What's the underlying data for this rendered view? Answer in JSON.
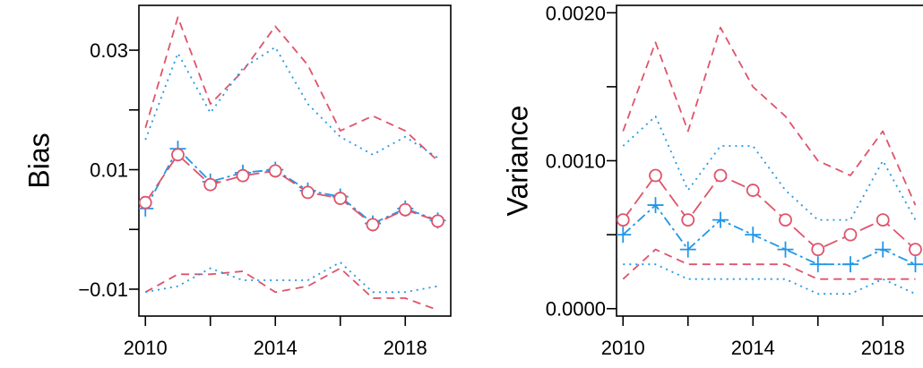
{
  "colors": {
    "red": "#df536b",
    "blue": "#2297e6",
    "axis": "#000000"
  },
  "chart_data": [
    {
      "type": "line",
      "ylabel": "Bias",
      "xlabel": "",
      "x": [
        2010,
        2011,
        2012,
        2013,
        2014,
        2015,
        2016,
        2017,
        2018,
        2019
      ],
      "xlim": [
        2009.8,
        2019.4
      ],
      "ylim": [
        -0.0145,
        0.0375
      ],
      "xticks": [
        2010,
        2012,
        2014,
        2016,
        2018
      ],
      "xtick_labels": [
        "2010",
        "",
        "2014",
        "",
        "2018"
      ],
      "yticks": [
        -0.01,
        0.0,
        0.01,
        0.02,
        0.03
      ],
      "ytick_labels": [
        "−0.01",
        "",
        "0.01",
        "",
        "0.03"
      ],
      "series": [
        {
          "color": "red",
          "style": "dashed",
          "marker": "none",
          "values": [
            0.017,
            0.0355,
            0.021,
            0.0265,
            0.034,
            0.0275,
            0.0165,
            0.019,
            0.0165,
            0.0115
          ]
        },
        {
          "color": "blue",
          "style": "dotted",
          "marker": "none",
          "values": [
            0.015,
            0.0295,
            0.0195,
            0.027,
            0.0305,
            0.021,
            0.0155,
            0.0125,
            0.0155,
            0.012
          ]
        },
        {
          "color": "blue",
          "style": "dashdot",
          "marker": "plus",
          "values": [
            0.0035,
            0.0135,
            0.008,
            0.0095,
            0.01,
            0.0065,
            0.0055,
            0.001,
            0.0035,
            0.0015
          ]
        },
        {
          "color": "red",
          "style": "longdash",
          "marker": "circle",
          "values": [
            0.0045,
            0.0125,
            0.0075,
            0.009,
            0.0098,
            0.0062,
            0.0052,
            0.0008,
            0.0033,
            0.0014
          ]
        },
        {
          "color": "red",
          "style": "dashed",
          "marker": "none",
          "values": [
            -0.0105,
            -0.0075,
            -0.0075,
            -0.007,
            -0.0105,
            -0.0095,
            -0.0065,
            -0.0115,
            -0.0115,
            -0.0135
          ]
        },
        {
          "color": "blue",
          "style": "dotted",
          "marker": "none",
          "values": [
            -0.0105,
            -0.0095,
            -0.0065,
            -0.0085,
            -0.0085,
            -0.0085,
            -0.0055,
            -0.0105,
            -0.0105,
            -0.0095
          ]
        }
      ]
    },
    {
      "type": "line",
      "ylabel": "Variance",
      "xlabel": "",
      "x": [
        2010,
        2011,
        2012,
        2013,
        2014,
        2015,
        2016,
        2017,
        2018,
        2019
      ],
      "xlim": [
        2009.8,
        2019.4
      ],
      "ylim": [
        -5e-05,
        0.00205
      ],
      "xticks": [
        2010,
        2012,
        2014,
        2016,
        2018
      ],
      "xtick_labels": [
        "2010",
        "",
        "2014",
        "",
        "2018"
      ],
      "yticks": [
        0.0,
        0.0005,
        0.001,
        0.0015,
        0.002
      ],
      "ytick_labels": [
        "0.0000",
        "",
        "0.0010",
        "",
        "0.0020"
      ],
      "series": [
        {
          "color": "red",
          "style": "dashed",
          "marker": "none",
          "values": [
            0.0012,
            0.0018,
            0.0012,
            0.0019,
            0.0015,
            0.0013,
            0.001,
            0.0009,
            0.0012,
            0.0007
          ]
        },
        {
          "color": "blue",
          "style": "dotted",
          "marker": "none",
          "values": [
            0.0011,
            0.0013,
            0.0008,
            0.0011,
            0.0011,
            0.0008,
            0.0006,
            0.0006,
            0.001,
            0.0006
          ]
        },
        {
          "color": "red",
          "style": "longdash",
          "marker": "circle",
          "values": [
            0.0006,
            0.0009,
            0.0006,
            0.0009,
            0.0008,
            0.0006,
            0.0004,
            0.0005,
            0.0006,
            0.0004
          ]
        },
        {
          "color": "blue",
          "style": "dashdot",
          "marker": "plus",
          "values": [
            0.0005,
            0.0007,
            0.0004,
            0.0006,
            0.0005,
            0.0004,
            0.0003,
            0.0003,
            0.0004,
            0.0003
          ]
        },
        {
          "color": "red",
          "style": "dashed",
          "marker": "none",
          "values": [
            0.0002,
            0.0004,
            0.0003,
            0.0003,
            0.0003,
            0.0003,
            0.0002,
            0.0002,
            0.0002,
            0.0002
          ]
        },
        {
          "color": "blue",
          "style": "dotted",
          "marker": "none",
          "values": [
            0.0003,
            0.0003,
            0.0002,
            0.0002,
            0.0002,
            0.0002,
            0.0001,
            0.0001,
            0.0002,
            0.0001
          ]
        }
      ]
    }
  ]
}
